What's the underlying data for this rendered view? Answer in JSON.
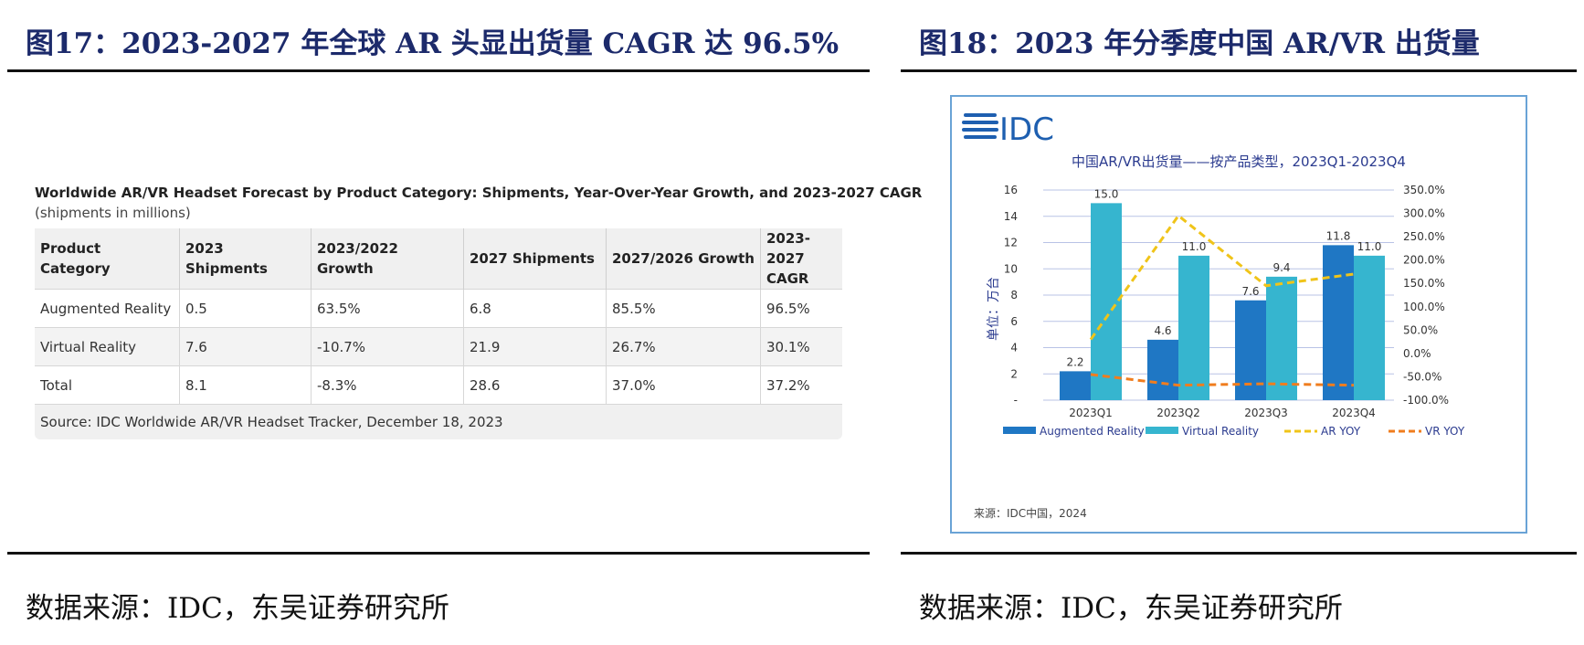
{
  "left": {
    "figure_title": "图17：2023-2027 年全球 AR 头显出货量 CAGR 达 96.5%",
    "table_caption": "Worldwide AR/VR Headset Forecast by Product Category: Shipments, Year-Over-Year Growth, and 2023-2027 CAGR",
    "table_subcaption": "(shipments in millions)",
    "headers": [
      "Product Category",
      "2023 Shipments",
      "2023/2022 Growth",
      "2027 Shipments",
      "2027/2026 Growth",
      "2023-2027 CAGR"
    ],
    "rows": [
      [
        "Augmented Reality",
        "0.5",
        "63.5%",
        "6.8",
        "85.5%",
        "96.5%"
      ],
      [
        "Virtual Reality",
        "7.6",
        "-10.7%",
        "21.9",
        "26.7%",
        "30.1%"
      ],
      [
        "Total",
        "8.1",
        "-8.3%",
        "28.6",
        "37.0%",
        "37.2%"
      ]
    ],
    "table_source": "Source: IDC Worldwide AR/VR Headset Tracker, December 18, 2023",
    "source_note": "数据来源：IDC，东吴证券研究所"
  },
  "right": {
    "figure_title": "图18：2023 年分季度中国 AR/VR 出货量",
    "logo_text": "IDC",
    "source_note": "数据来源：IDC，东吴证券研究所",
    "chart_source": "来源：IDC中国，2024"
  },
  "chart_data": {
    "type": "bar",
    "title": "中国AR/VR出货量——按产品类型，2023Q1-2023Q4",
    "ylabel": "单位：万台",
    "categories": [
      "2023Q1",
      "2023Q2",
      "2023Q3",
      "2023Q4"
    ],
    "ylim": [
      0,
      16
    ],
    "y_ticks": [
      "-",
      "2",
      "4",
      "6",
      "8",
      "10",
      "12",
      "14",
      "16"
    ],
    "y2lim": [
      -100,
      350
    ],
    "y2_ticks": [
      "-100.0%",
      "-50.0%",
      "0.0%",
      "50.0%",
      "100.0%",
      "150.0%",
      "200.0%",
      "250.0%",
      "300.0%",
      "350.0%"
    ],
    "series": [
      {
        "name": "Augmented Reality",
        "kind": "bar",
        "color": "#1f77c4",
        "values": [
          2.2,
          4.6,
          7.6,
          11.8
        ],
        "labels": [
          "2.2",
          "4.6",
          "7.6",
          "11.8"
        ]
      },
      {
        "name": "Virtual Reality",
        "kind": "bar",
        "color": "#36b5cf",
        "values": [
          15.0,
          11.0,
          9.4,
          11.0
        ],
        "labels": [
          "15.0",
          "11.0",
          "9.4",
          "11.0"
        ]
      },
      {
        "name": "AR YOY",
        "kind": "line",
        "axis": "right",
        "color": "#f0c419",
        "values": [
          30,
          295,
          145,
          170
        ]
      },
      {
        "name": "VR YOY",
        "kind": "line",
        "axis": "right",
        "color": "#f07d1e",
        "values": [
          -45,
          -68,
          -65,
          -68
        ]
      }
    ],
    "legend_position": "bottom",
    "grid": true
  }
}
